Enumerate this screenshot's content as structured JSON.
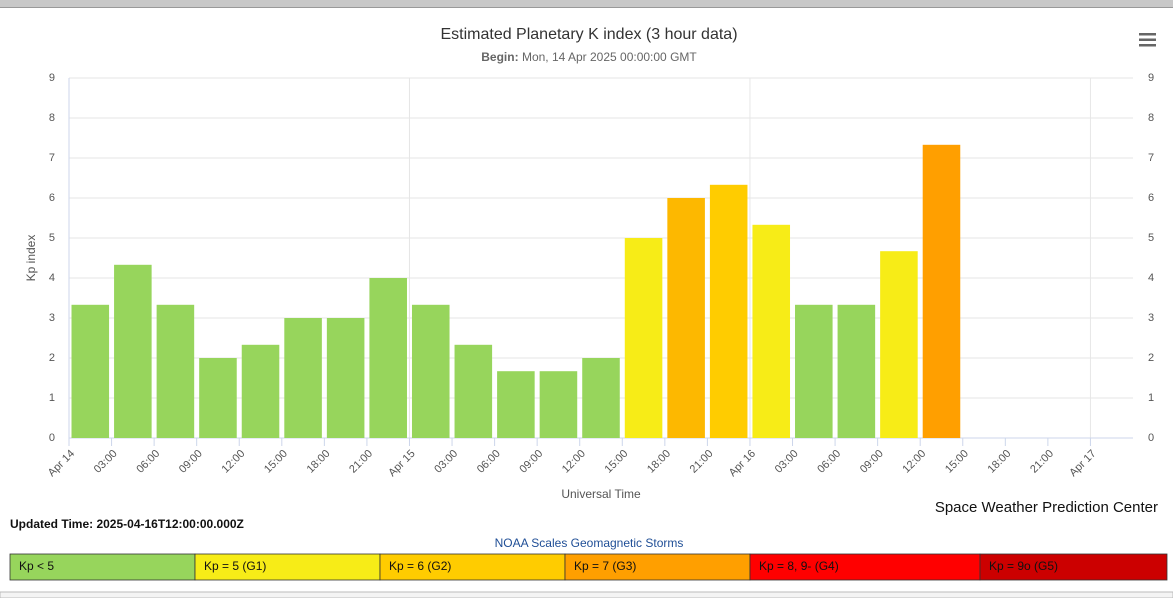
{
  "chart_data": {
    "type": "bar",
    "title": "Estimated Planetary K index (3 hour data)",
    "subtitle_label": "Begin:",
    "subtitle": "Mon, 14 Apr 2025 00:00:00 GMT",
    "y_label": "Kp index",
    "x_label": "Universal Time",
    "credit": "Space Weather Prediction Center",
    "updated": "Updated Time: 2025-04-16T12:00:00.000Z",
    "legend_title": "NOAA Scales Geomagnetic Storms",
    "xtick_labels": [
      "Apr 14",
      "03:00",
      "06:00",
      "09:00",
      "12:00",
      "15:00",
      "18:00",
      "21:00",
      "Apr 15",
      "03:00",
      "06:00",
      "09:00",
      "12:00",
      "15:00",
      "18:00",
      "21:00",
      "Apr 16",
      "03:00",
      "06:00",
      "09:00",
      "12:00",
      "15:00",
      "18:00",
      "21:00",
      "Apr 17"
    ],
    "values": [
      3.33,
      4.33,
      3.33,
      2,
      2.33,
      3,
      3,
      4,
      3.33,
      2.33,
      1.67,
      1.67,
      2,
      5,
      6,
      6.33,
      5.33,
      3.33,
      3.33,
      4.67,
      7.33
    ],
    "colors": [
      "#97d55c",
      "#97d55c",
      "#97d55c",
      "#97d55c",
      "#97d55c",
      "#97d55c",
      "#97d55c",
      "#97d55c",
      "#97d55c",
      "#97d55c",
      "#97d55c",
      "#97d55c",
      "#97d55c",
      "#f7ec17",
      "#fdb800",
      "#ffcc00",
      "#f7ec17",
      "#97d55c",
      "#97d55c",
      "#f7ec17",
      "#ff9f00"
    ],
    "ylim": [
      0,
      9
    ],
    "yticks": [
      0,
      1,
      2,
      3,
      4,
      5,
      6,
      7,
      8,
      9
    ],
    "grid": true,
    "legend": [
      {
        "label": "Kp < 5",
        "color": "#97d55c"
      },
      {
        "label": "Kp = 5 (G1)",
        "color": "#f7ec17"
      },
      {
        "label": "Kp = 6 (G2)",
        "color": "#ffcc00"
      },
      {
        "label": "Kp = 7 (G3)",
        "color": "#ff9f00"
      },
      {
        "label": "Kp = 8, 9- (G4)",
        "color": "#ff0000"
      },
      {
        "label": "Kp = 9o (G5)",
        "color": "#cc0000"
      }
    ]
  }
}
